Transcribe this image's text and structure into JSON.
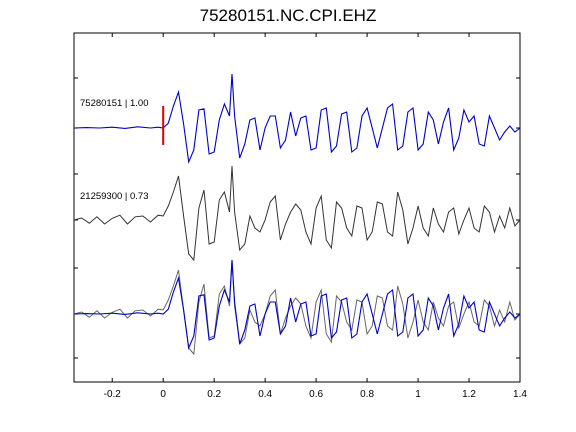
{
  "chart_data": {
    "type": "line",
    "title": "75280151.NC.CPI.EHZ",
    "xlabel": "",
    "ylabel": "",
    "xlim": [
      -0.35,
      1.4
    ],
    "x_ticks": [
      "-0.2",
      "0",
      "0.2",
      "0.4",
      "0.6",
      "0.8",
      "1",
      "1.2",
      "1.4"
    ],
    "x_tick_values": [
      -0.2,
      0,
      0.2,
      0.4,
      0.6,
      0.8,
      1.0,
      1.2,
      1.4
    ],
    "grid": false,
    "pick_marker": {
      "x": 0.0,
      "color": "#dd0000"
    },
    "traces": [
      {
        "label": "75280151 | 1.00",
        "color": "#0000cc",
        "row": "top"
      },
      {
        "label": "21259300 | 0.73",
        "color": "#333333",
        "row": "middle"
      },
      {
        "label": "",
        "color": "#0000cc",
        "row": "overlay"
      },
      {
        "label": "",
        "color": "#666666",
        "row": "overlay"
      }
    ],
    "series": [
      {
        "trace": 0,
        "x": [
          -0.35,
          -0.3,
          -0.25,
          -0.2,
          -0.15,
          -0.1,
          -0.05,
          -0.02,
          0.0,
          0.02,
          0.04,
          0.06,
          0.08,
          0.1,
          0.12,
          0.14,
          0.16,
          0.18,
          0.2,
          0.22,
          0.24,
          0.26,
          0.27,
          0.28,
          0.3,
          0.32,
          0.34,
          0.36,
          0.38,
          0.4,
          0.42,
          0.44,
          0.46,
          0.48,
          0.5,
          0.52,
          0.54,
          0.56,
          0.58,
          0.6,
          0.62,
          0.64,
          0.66,
          0.68,
          0.7,
          0.72,
          0.74,
          0.76,
          0.78,
          0.8,
          0.82,
          0.84,
          0.86,
          0.88,
          0.9,
          0.92,
          0.94,
          0.96,
          0.98,
          1.0,
          1.02,
          1.04,
          1.06,
          1.08,
          1.1,
          1.12,
          1.14,
          1.16,
          1.18,
          1.2,
          1.22,
          1.24,
          1.26,
          1.28,
          1.3,
          1.32,
          1.34,
          1.36,
          1.38,
          1.4
        ],
        "y": [
          0.0,
          0.01,
          0.0,
          0.02,
          -0.01,
          0.03,
          0.0,
          0.02,
          0.0,
          0.12,
          0.55,
          0.9,
          0.1,
          -0.85,
          -0.55,
          0.45,
          0.48,
          -0.65,
          -0.6,
          0.2,
          0.6,
          0.3,
          1.35,
          0.3,
          -0.75,
          -0.4,
          0.2,
          0.25,
          -0.55,
          0.0,
          0.3,
          0.3,
          -0.5,
          -0.3,
          0.4,
          -0.2,
          0.25,
          0.3,
          -0.55,
          -0.5,
          0.45,
          0.5,
          -0.6,
          -0.45,
          0.35,
          0.4,
          -0.6,
          -0.5,
          0.3,
          0.5,
          0.0,
          -0.5,
          0.0,
          0.5,
          0.6,
          -0.55,
          -0.45,
          0.4,
          0.5,
          -0.55,
          -0.4,
          0.4,
          0.2,
          -0.4,
          0.15,
          0.5,
          -0.55,
          -0.25,
          0.45,
          0.15,
          0.3,
          -0.4,
          -0.45,
          0.3,
          0.0,
          -0.3,
          -0.1,
          0.05,
          -0.1,
          0.0
        ]
      },
      {
        "trace": 1,
        "x": [
          -0.35,
          -0.32,
          -0.29,
          -0.26,
          -0.23,
          -0.2,
          -0.17,
          -0.14,
          -0.11,
          -0.08,
          -0.05,
          -0.02,
          0.0,
          0.02,
          0.04,
          0.06,
          0.08,
          0.1,
          0.12,
          0.14,
          0.16,
          0.18,
          0.2,
          0.22,
          0.24,
          0.26,
          0.27,
          0.28,
          0.3,
          0.32,
          0.34,
          0.36,
          0.38,
          0.4,
          0.42,
          0.44,
          0.46,
          0.48,
          0.5,
          0.52,
          0.54,
          0.56,
          0.58,
          0.6,
          0.62,
          0.64,
          0.66,
          0.68,
          0.7,
          0.72,
          0.74,
          0.76,
          0.78,
          0.8,
          0.82,
          0.84,
          0.86,
          0.88,
          0.9,
          0.92,
          0.94,
          0.96,
          0.98,
          1.0,
          1.02,
          1.04,
          1.06,
          1.08,
          1.1,
          1.12,
          1.14,
          1.16,
          1.18,
          1.2,
          1.22,
          1.24,
          1.26,
          1.28,
          1.3,
          1.32,
          1.34,
          1.36,
          1.38,
          1.4
        ],
        "y": [
          0.0,
          0.05,
          -0.08,
          0.08,
          -0.1,
          0.04,
          0.12,
          -0.1,
          0.08,
          0.1,
          -0.05,
          0.12,
          0.1,
          0.35,
          0.7,
          1.1,
          0.1,
          -0.85,
          -1.0,
          0.3,
          0.75,
          -0.6,
          -0.55,
          0.5,
          0.7,
          0.2,
          1.35,
          0.2,
          -0.75,
          -0.6,
          0.1,
          -0.2,
          -0.3,
          0.0,
          0.45,
          0.6,
          -0.5,
          -0.1,
          0.2,
          0.4,
          0.25,
          -0.3,
          -0.6,
          0.3,
          0.6,
          -0.5,
          -0.7,
          0.45,
          0.3,
          -0.2,
          -0.4,
          0.35,
          0.3,
          -0.5,
          -0.3,
          0.45,
          0.4,
          -0.3,
          -0.4,
          0.7,
          0.25,
          -0.6,
          -0.2,
          0.35,
          -0.2,
          -0.4,
          0.3,
          -0.1,
          -0.3,
          0.2,
          0.3,
          -0.35,
          0.0,
          0.3,
          -0.2,
          -0.3,
          0.35,
          0.2,
          -0.3,
          0.1,
          -0.2,
          0.3,
          -0.15,
          0.0
        ]
      }
    ]
  }
}
